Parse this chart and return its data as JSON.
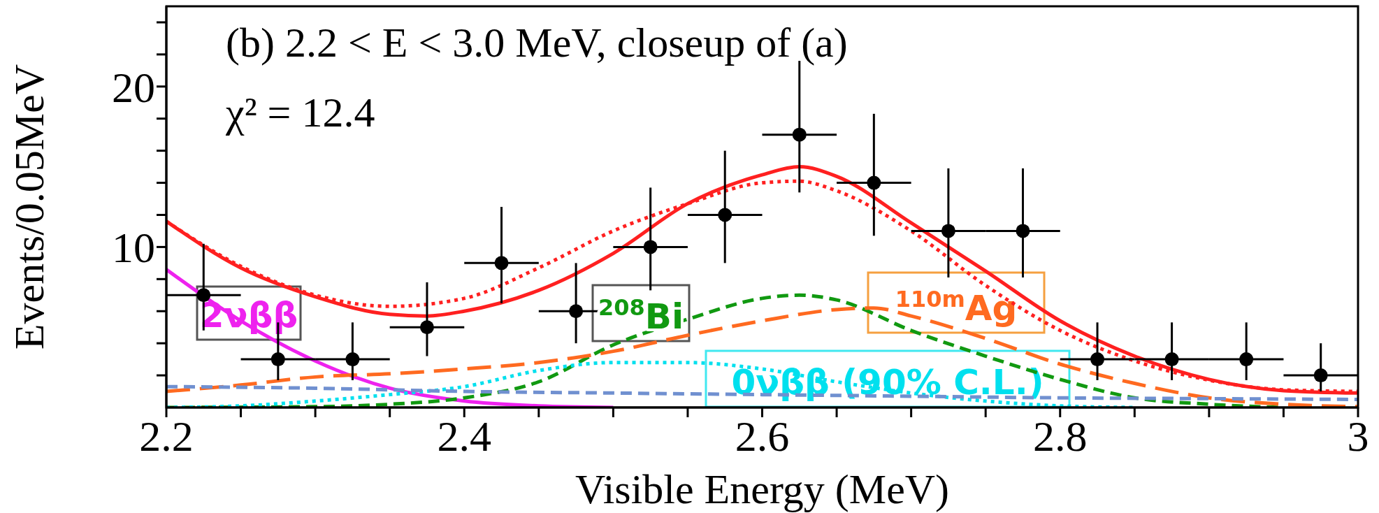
{
  "chart_data": {
    "type": "line",
    "xlabel": "Visible Energy (MeV)",
    "ylabel": "Events/0.05MeV",
    "annotations": [
      "(b) 2.2 < E < 3.0 MeV, closeup of (a)",
      "χ² = 12.4"
    ],
    "xlim": [
      2.2,
      3.0
    ],
    "xticks": [
      2.2,
      {
        "value": 2.25,
        "label": null
      },
      {
        "value": 2.3,
        "label": null
      },
      {
        "value": 2.35,
        "label": null
      },
      2.4,
      {
        "value": 2.45,
        "label": null
      },
      {
        "value": 2.5,
        "label": null
      },
      {
        "value": 2.55,
        "label": null
      },
      2.6,
      {
        "value": 2.65,
        "label": null
      },
      {
        "value": 2.7,
        "label": null
      },
      {
        "value": 2.75,
        "label": null
      },
      2.8,
      {
        "value": 2.85,
        "label": null
      },
      {
        "value": 2.9,
        "label": null
      },
      {
        "value": 2.95,
        "label": null
      },
      3
    ],
    "ylim": [
      0,
      25
    ],
    "yticks": [
      {
        "value": 2,
        "label": null
      },
      {
        "value": 4,
        "label": null
      },
      {
        "value": 6,
        "label": null
      },
      {
        "value": 8,
        "label": null
      },
      10,
      {
        "value": 12,
        "label": null
      },
      {
        "value": 14,
        "label": null
      },
      {
        "value": 16,
        "label": null
      },
      {
        "value": 18,
        "label": null
      },
      20,
      {
        "value": 22,
        "label": null
      },
      {
        "value": 24,
        "label": null
      }
    ],
    "series": [
      {
        "color": "#ff2020",
        "line_style": "solid",
        "x": [
          2.2,
          2.25,
          2.3,
          2.35,
          2.375,
          2.4,
          2.45,
          2.5,
          2.55,
          2.6,
          2.625,
          2.65,
          2.7,
          2.75,
          2.8,
          2.85,
          2.9,
          2.95,
          3.0
        ],
        "values": [
          11.6,
          8.7,
          6.9,
          5.8,
          5.7,
          6.0,
          7.3,
          9.6,
          12.7,
          14.5,
          15.0,
          14.4,
          11.5,
          8.5,
          5.4,
          3.2,
          1.75,
          1.05,
          0.9
        ]
      },
      {
        "color": "#ff2020",
        "line_style": "dotted",
        "x": [
          2.2,
          2.25,
          2.3,
          2.35,
          2.4,
          2.45,
          2.5,
          2.55,
          2.6,
          2.625,
          2.65,
          2.7,
          2.75,
          2.8,
          2.85,
          2.9,
          2.95,
          3.0
        ],
        "values": [
          11.6,
          8.8,
          7.0,
          6.3,
          6.8,
          8.7,
          11.0,
          12.7,
          14.0,
          14.1,
          13.5,
          11.0,
          7.6,
          4.8,
          2.9,
          1.7,
          1.1,
          1.0
        ]
      },
      {
        "name": "2νββ",
        "color": "#ee22ee",
        "line_style": "solid",
        "x": [
          2.2,
          2.25,
          2.3,
          2.35,
          2.4,
          2.45,
          2.5
        ],
        "values": [
          8.6,
          5.4,
          2.9,
          1.2,
          0.4,
          0.1,
          0
        ]
      },
      {
        "name": "$^{208}$Bi",
        "color": "#119911",
        "line_style": "dashed",
        "x": [
          2.2,
          2.3,
          2.35,
          2.4,
          2.45,
          2.5,
          2.55,
          2.6,
          2.625,
          2.65,
          2.7,
          2.75,
          2.8,
          2.85,
          2.9,
          2.95
        ],
        "values": [
          0,
          0.05,
          0.2,
          0.6,
          1.6,
          3.9,
          5.5,
          6.8,
          7.0,
          6.7,
          4.8,
          3.2,
          1.75,
          0.6,
          0.2,
          0
        ]
      },
      {
        "name": "$^{110m}$Ag",
        "color": "#ff6a20",
        "line_style": "longdash",
        "x": [
          2.2,
          2.25,
          2.3,
          2.35,
          2.4,
          2.45,
          2.5,
          2.55,
          2.6,
          2.65,
          2.675,
          2.7,
          2.75,
          2.8,
          2.85,
          2.9,
          2.95,
          3.0
        ],
        "values": [
          1.0,
          1.4,
          1.9,
          2.1,
          2.4,
          2.8,
          3.5,
          4.5,
          5.4,
          6.1,
          6.2,
          5.7,
          4.3,
          2.7,
          1.5,
          0.6,
          0.2,
          0.05
        ]
      },
      {
        "name": "0νββ (90% C.L.)",
        "color": "#00e0ee",
        "line_style": "dotted",
        "x": [
          2.2,
          2.25,
          2.3,
          2.35,
          2.4,
          2.45,
          2.5,
          2.55,
          2.6,
          2.65,
          2.7,
          2.75,
          2.8,
          2.85
        ],
        "values": [
          0,
          0.1,
          0.4,
          0.8,
          1.3,
          2.3,
          2.8,
          2.8,
          2.4,
          1.6,
          0.9,
          0.4,
          0.1,
          0
        ]
      },
      {
        "color": "#7090d0",
        "line_style": "dashed",
        "x": [
          2.2,
          2.3,
          2.4,
          2.5,
          2.6,
          2.7,
          2.8,
          2.9,
          3.0
        ],
        "values": [
          1.3,
          1.2,
          1.0,
          0.9,
          0.8,
          0.7,
          0.6,
          0.55,
          0.5
        ]
      },
      {
        "type": "scatter",
        "color": "#000000",
        "marker": "circle",
        "x": [
          2.225,
          2.275,
          2.325,
          2.375,
          2.425,
          2.475,
          2.525,
          2.575,
          2.625,
          2.675,
          2.725,
          2.775,
          2.825,
          2.875,
          2.925,
          2.975
        ],
        "values": [
          7,
          3,
          3,
          5,
          9,
          6,
          10,
          12,
          17,
          14,
          11,
          11,
          3,
          3,
          3,
          2
        ],
        "errors": [
          [
            4.8,
            10.2
          ],
          [
            1.7,
            5.3
          ],
          [
            1.7,
            5.3
          ],
          [
            3.2,
            7.8
          ],
          [
            6.5,
            12.5
          ],
          [
            4.0,
            9.0
          ],
          [
            7.3,
            13.7
          ],
          [
            9.0,
            16.0
          ],
          [
            13.4,
            21.6
          ],
          [
            10.7,
            18.3
          ],
          [
            8.1,
            14.9
          ],
          [
            8.1,
            14.9
          ],
          [
            1.7,
            5.3
          ],
          [
            1.7,
            5.3
          ],
          [
            1.7,
            5.3
          ],
          [
            1.0,
            4.0
          ]
        ],
        "xerrors": [
          0.025,
          0.025,
          0.025,
          0.025,
          0.025,
          0.025,
          0.025,
          0.025,
          0.025,
          0.025,
          0.025,
          0.025,
          0.025,
          0.025,
          0.025,
          0.025
        ]
      }
    ]
  }
}
